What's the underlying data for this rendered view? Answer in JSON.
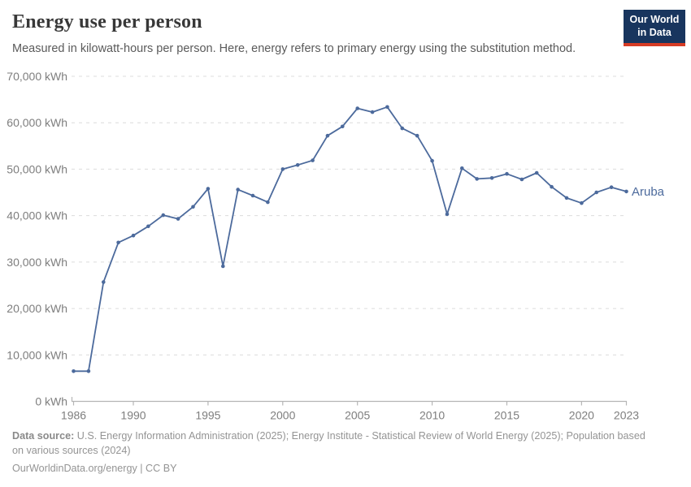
{
  "header": {
    "title": "Energy use per person",
    "subtitle": "Measured in kilowatt-hours per person. Here, energy refers to primary energy using the substitution method.",
    "logo": {
      "line1": "Our World",
      "line2": "in Data"
    }
  },
  "footer": {
    "source_label": "Data source:",
    "source_text": " U.S. Energy Information Administration (2025); Energy Institute - Statistical Review of World Energy (2025); Population based on various sources (2024)",
    "license": "OurWorldinData.org/energy | CC BY"
  },
  "colors": {
    "series_blue": "#4c6a9c",
    "grid_gray": "#dcdcdc",
    "axis_gray": "#b5b5b5",
    "tick_label_gray": "#7e7e7e",
    "logo_navy": "#18355e",
    "logo_red": "#d63b24"
  },
  "chart_data": {
    "type": "line",
    "title": "Energy use per person",
    "unit": "kWh",
    "entity_label": "Aruba",
    "grid": true,
    "legend_position": "end-of-line",
    "ylim": [
      0,
      70000
    ],
    "y_ticks": [
      0,
      10000,
      20000,
      30000,
      40000,
      50000,
      60000,
      70000
    ],
    "x_ticks": [
      1986,
      1990,
      1995,
      2000,
      2005,
      2010,
      2015,
      2020,
      2023
    ],
    "x": [
      1986,
      1987,
      1988,
      1989,
      1990,
      1991,
      1992,
      1993,
      1994,
      1995,
      1996,
      1997,
      1998,
      1999,
      2000,
      2001,
      2002,
      2003,
      2004,
      2005,
      2006,
      2007,
      2008,
      2009,
      2010,
      2011,
      2012,
      2013,
      2014,
      2015,
      2016,
      2017,
      2018,
      2019,
      2020,
      2021,
      2022,
      2023
    ],
    "series": [
      {
        "name": "Aruba",
        "values": [
          6500,
          6500,
          25700,
          34200,
          35700,
          37700,
          40100,
          39300,
          41900,
          45800,
          29100,
          45600,
          44300,
          42900,
          50000,
          50900,
          51900,
          57200,
          59200,
          63100,
          62300,
          63400,
          58800,
          57200,
          51800,
          40300,
          50200,
          47900,
          48100,
          49000,
          47800,
          49200,
          46200,
          43800,
          42700,
          45000,
          46100,
          45200
        ]
      }
    ]
  }
}
